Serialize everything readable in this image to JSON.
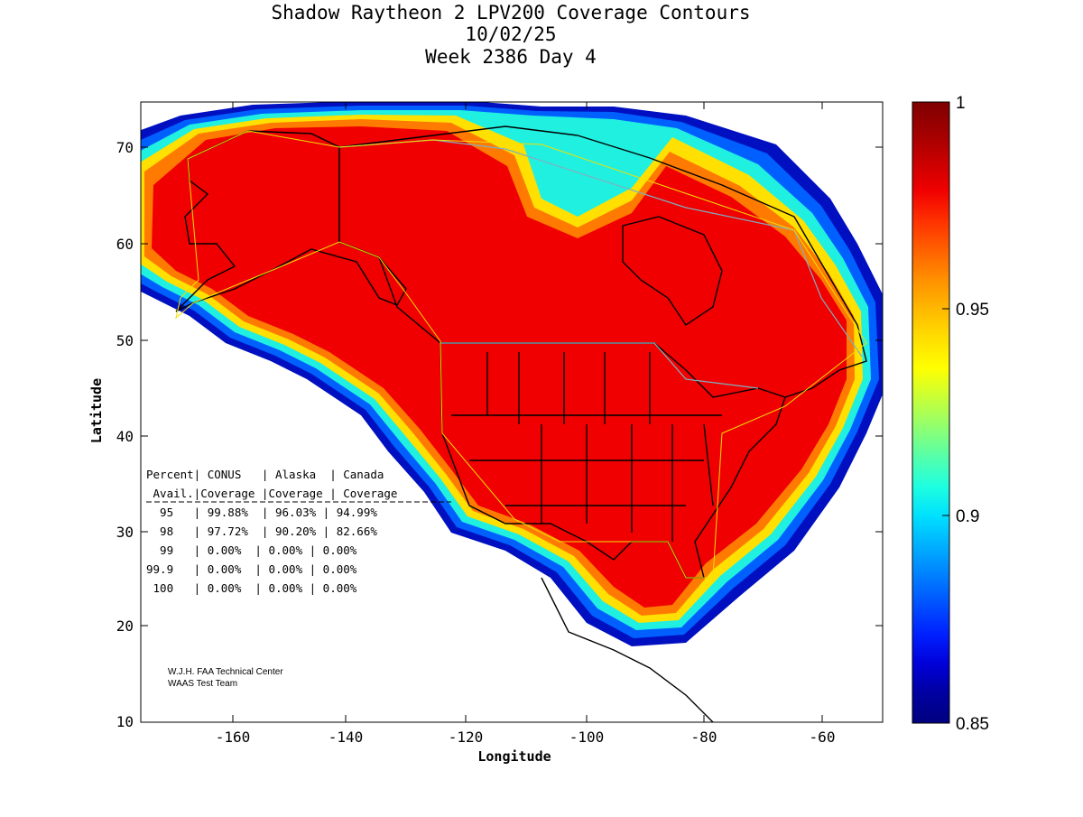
{
  "title": {
    "line1": "Shadow Raytheon 2 LPV200 Coverage Contours",
    "line2": "10/02/25",
    "line3": "Week 2386 Day 4"
  },
  "axes": {
    "xlabel": "Longitude",
    "ylabel": "Latitude",
    "xticks": [
      "-160",
      "-140",
      "-120",
      "-100",
      "-80",
      "-60"
    ],
    "yticks": [
      "70",
      "60",
      "50",
      "40",
      "30",
      "20",
      "10"
    ]
  },
  "colorbar": {
    "ticks": [
      "1",
      "0.95",
      "0.9",
      "0.85"
    ],
    "colors": [
      "#7f0000",
      "#a00000",
      "#c80000",
      "#f00000",
      "#ff3000",
      "#ff6000",
      "#ff9000",
      "#ffb800",
      "#ffdf00",
      "#ffff00",
      "#c8ff37",
      "#90ff70",
      "#55ffaa",
      "#1effe0",
      "#00e0ff",
      "#00b0ff",
      "#0080ff",
      "#0050ff",
      "#0020ff",
      "#0000d8",
      "#0000a0",
      "#00007f"
    ]
  },
  "table": {
    "header1": "Percent| CONUS   | Alaska  | Canada",
    "header2": " Avail.|Coverage |Coverage | Coverage",
    "rows": [
      "  95   | 99.88%  | 96.03% | 94.99%",
      "  98   | 97.72%  | 90.20% | 82.66%",
      "  99   | 0.00%  | 0.00% | 0.00%",
      "99.9   | 0.00%  | 0.00% | 0.00%",
      " 100   | 0.00%  | 0.00% | 0.00%"
    ]
  },
  "credit": {
    "line1": "W.J.H. FAA Technical Center",
    "line2": "WAAS Test Team"
  },
  "colors": {
    "core": "#f00000",
    "band_orange": "#ff7a00",
    "band_yellow": "#ffe000",
    "band_cyan": "#20f0e0",
    "band_blue": "#0060ff",
    "band_navy": "#0010c0"
  }
}
